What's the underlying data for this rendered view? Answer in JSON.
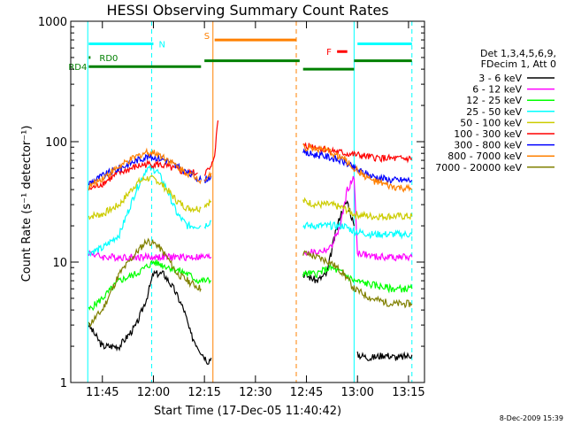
{
  "chart_data": {
    "type": "line",
    "title": "HESSI Observing Summary Count Rates",
    "xlabel": "Start Time (17-Dec-05 11:40:42)",
    "ylabel": "Count Rate (s⁻¹ detector⁻¹)",
    "y_scale": "log",
    "ylim": [
      1,
      1000
    ],
    "xlim_minutes_after_start": [
      -5,
      99
    ],
    "x_ticks": [
      "11:45",
      "12:00",
      "12:15",
      "12:30",
      "12:45",
      "13:00",
      "13:15"
    ],
    "y_ticks": [
      "1",
      "10",
      "100",
      "1000"
    ],
    "legend_header": [
      "Det 1,3,4,5,6,9,",
      "FDecim 1, Att 0"
    ],
    "grid": false,
    "timestamp": "8-Dec-2009 15:39",
    "series": [
      {
        "name": "3 - 6 keV",
        "color": "#000000",
        "segments": [
          {
            "t": [
              "11:41",
              "11:45",
              "11:50",
              "11:55",
              "11:58",
              "12:00",
              "12:03",
              "12:06",
              "12:09",
              "12:11",
              "12:14",
              "12:16",
              "12:17"
            ],
            "v": [
              3,
              2,
              2,
              3,
              5,
              8,
              8,
              6,
              4,
              2.5,
              1.8,
              1.5,
              1.6
            ]
          },
          {
            "t": [
              "12:44",
              "12:48",
              "12:51",
              "12:53",
              "12:55",
              "12:57",
              "12:59"
            ],
            "v": [
              8,
              7,
              8,
              15,
              25,
              32,
              20
            ]
          },
          {
            "t": [
              "13:00",
              "13:04",
              "13:08",
              "13:12",
              "13:16"
            ],
            "v": [
              1.7,
              1.6,
              1.7,
              1.6,
              1.7
            ]
          }
        ]
      },
      {
        "name": "6 - 12 keV",
        "color": "#ff00ff",
        "segments": [
          {
            "t": [
              "11:41",
              "11:45",
              "11:50",
              "11:55",
              "11:58",
              "12:01",
              "12:04",
              "12:08",
              "12:11",
              "12:13",
              "12:15",
              "12:17"
            ],
            "v": [
              12,
              11,
              11,
              11,
              11,
              11,
              11,
              11,
              11,
              11,
              11,
              11
            ]
          },
          {
            "t": [
              "12:44",
              "12:48",
              "12:52",
              "12:55",
              "12:57",
              "12:59",
              "13:00",
              "13:05",
              "13:10",
              "13:16"
            ],
            "v": [
              12,
              12,
              13,
              20,
              40,
              50,
              12,
              11,
              11,
              11
            ]
          }
        ]
      },
      {
        "name": "12 - 25 keV",
        "color": "#00ff00",
        "segments": [
          {
            "t": [
              "11:41",
              "11:45",
              "11:50",
              "11:55",
              "12:00",
              "12:05",
              "12:10",
              "12:13",
              "12:15",
              "12:17"
            ],
            "v": [
              4,
              5,
              7,
              8,
              10,
              9,
              8,
              7,
              7,
              7
            ]
          },
          {
            "t": [
              "12:44",
              "12:48",
              "12:52",
              "12:56",
              "12:59",
              "13:04",
              "13:10",
              "13:16"
            ],
            "v": [
              8,
              8,
              9,
              8,
              7,
              6.5,
              6,
              6
            ]
          }
        ]
      },
      {
        "name": "25 - 50 keV",
        "color": "#00ffff",
        "segments": [
          {
            "t": [
              "11:41",
              "11:45",
              "11:50",
              "11:55",
              "11:58",
              "12:01",
              "12:04",
              "12:07",
              "12:10",
              "12:14"
            ],
            "v": [
              12,
              13,
              17,
              40,
              60,
              58,
              40,
              25,
              20,
              20
            ]
          },
          {
            "t": [
              "12:15",
              "12:17"
            ],
            "v": [
              20,
              22
            ]
          },
          {
            "t": [
              "12:44",
              "12:48",
              "12:52",
              "12:56",
              "12:59",
              "13:04",
              "13:10",
              "13:16"
            ],
            "v": [
              20,
              20,
              20,
              20,
              18,
              17,
              17,
              17
            ]
          }
        ]
      },
      {
        "name": "50 - 100 keV",
        "color": "#cccc00",
        "segments": [
          {
            "t": [
              "11:41",
              "11:45",
              "11:50",
              "11:55",
              "11:58",
              "12:01",
              "12:04",
              "12:07",
              "12:10",
              "12:14"
            ],
            "v": [
              24,
              25,
              30,
              45,
              50,
              48,
              40,
              32,
              28,
              28
            ]
          },
          {
            "t": [
              "12:15",
              "12:17"
            ],
            "v": [
              30,
              32
            ]
          },
          {
            "t": [
              "12:44",
              "12:48",
              "12:52",
              "12:56",
              "12:59",
              "13:04",
              "13:10",
              "13:16"
            ],
            "v": [
              32,
              30,
              30,
              28,
              25,
              24,
              24,
              24
            ]
          }
        ]
      },
      {
        "name": "100 - 300 keV",
        "color": "#ff0000",
        "segments": [
          {
            "t": [
              "11:41",
              "11:45",
              "11:50",
              "11:55",
              "11:58",
              "12:01",
              "12:04",
              "12:07",
              "12:10",
              "12:13"
            ],
            "v": [
              40,
              45,
              55,
              62,
              65,
              65,
              62,
              58,
              55,
              55
            ]
          },
          {
            "t": [
              "12:15",
              "12:17",
              "12:18",
              "12:19"
            ],
            "v": [
              55,
              60,
              80,
              150
            ]
          },
          {
            "t": [
              "12:44",
              "12:48",
              "12:52",
              "12:56",
              "12:59",
              "13:04",
              "13:10",
              "13:16"
            ],
            "v": [
              95,
              90,
              85,
              80,
              78,
              74,
              72,
              72
            ]
          }
        ]
      },
      {
        "name": "300 - 800 keV",
        "color": "#0000ff",
        "segments": [
          {
            "t": [
              "11:41",
              "11:45",
              "11:50",
              "11:55",
              "11:58",
              "12:01",
              "12:04",
              "12:07",
              "12:10",
              "12:14"
            ],
            "v": [
              45,
              52,
              60,
              70,
              75,
              74,
              70,
              62,
              55,
              48
            ]
          },
          {
            "t": [
              "12:15",
              "12:17"
            ],
            "v": [
              48,
              52
            ]
          },
          {
            "t": [
              "12:44",
              "12:48",
              "12:52",
              "12:56",
              "12:59",
              "13:04",
              "13:10",
              "13:16"
            ],
            "v": [
              80,
              78,
              74,
              68,
              60,
              52,
              48,
              48
            ]
          }
        ]
      },
      {
        "name": "800 - 7000 keV",
        "color": "#ff8000",
        "segments": [
          {
            "t": [
              "11:41",
              "11:45",
              "11:50",
              "11:55",
              "11:58",
              "12:01",
              "12:04",
              "12:07",
              "12:10",
              "12:14"
            ],
            "v": [
              42,
              50,
              62,
              75,
              82,
              80,
              72,
              62,
              55,
              48
            ]
          },
          {
            "t": [
              "12:15",
              "12:17"
            ],
            "v": [
              48,
              55
            ]
          },
          {
            "t": [
              "12:44",
              "12:48",
              "12:52",
              "12:56",
              "12:59",
              "13:04",
              "13:10",
              "13:16"
            ],
            "v": [
              90,
              88,
              82,
              72,
              60,
              48,
              42,
              40
            ]
          }
        ]
      },
      {
        "name": "7000 - 20000 keV",
        "color": "#808000",
        "segments": [
          {
            "t": [
              "11:41",
              "11:45",
              "11:50",
              "11:55",
              "11:58",
              "12:01",
              "12:04",
              "12:07",
              "12:10",
              "12:14"
            ],
            "v": [
              3,
              4,
              8,
              12,
              15,
              14,
              11,
              8,
              7,
              6
            ]
          },
          {
            "t": [
              "12:44",
              "12:48",
              "12:52",
              "12:56",
              "12:59",
              "13:04",
              "13:10",
              "13:16"
            ],
            "v": [
              12,
              11,
              10,
              8,
              6,
              5,
              4.5,
              4.5
            ]
          }
        ]
      }
    ],
    "flag_bars": [
      {
        "label": "N",
        "color": "#00ffff",
        "level": 650,
        "spans": [
          [
            "11:41",
            "12:00"
          ],
          [
            "13:00",
            "13:16"
          ]
        ]
      },
      {
        "label": "S",
        "color": "#ff8000",
        "level": 700,
        "spans": [
          [
            "12:18",
            "12:42"
          ]
        ]
      },
      {
        "label": "F",
        "color": "#ff0000",
        "level": 560,
        "spans": [
          [
            "12:54",
            "12:57"
          ]
        ]
      },
      {
        "label": "RD0",
        "color": "#008000",
        "level": 500,
        "spans": [
          [
            "11:41",
            "11:41:30"
          ]
        ]
      },
      {
        "label": "RD4",
        "color": "#008000",
        "level": 420,
        "spans": [
          [
            "11:41",
            "12:14"
          ]
        ]
      },
      {
        "label": "",
        "color": "#008000",
        "level": 470,
        "spans": [
          [
            "12:15",
            "12:43"
          ],
          [
            "12:59",
            "13:16"
          ]
        ]
      },
      {
        "label": "",
        "color": "#008000",
        "level": 400,
        "spans": [
          [
            "12:44",
            "12:59"
          ]
        ]
      }
    ],
    "vertical_lines": [
      {
        "t": "11:40:42",
        "color": "#00ffff",
        "style": "solid"
      },
      {
        "t": "11:59:30",
        "color": "#00ffff",
        "style": "dashed"
      },
      {
        "t": "12:17:30",
        "color": "#ff8000",
        "style": "solid"
      },
      {
        "t": "12:42",
        "color": "#ff8000",
        "style": "dashed"
      },
      {
        "t": "12:59",
        "color": "#00ffff",
        "style": "solid"
      },
      {
        "t": "13:16",
        "color": "#00ffff",
        "style": "dashed"
      }
    ]
  }
}
